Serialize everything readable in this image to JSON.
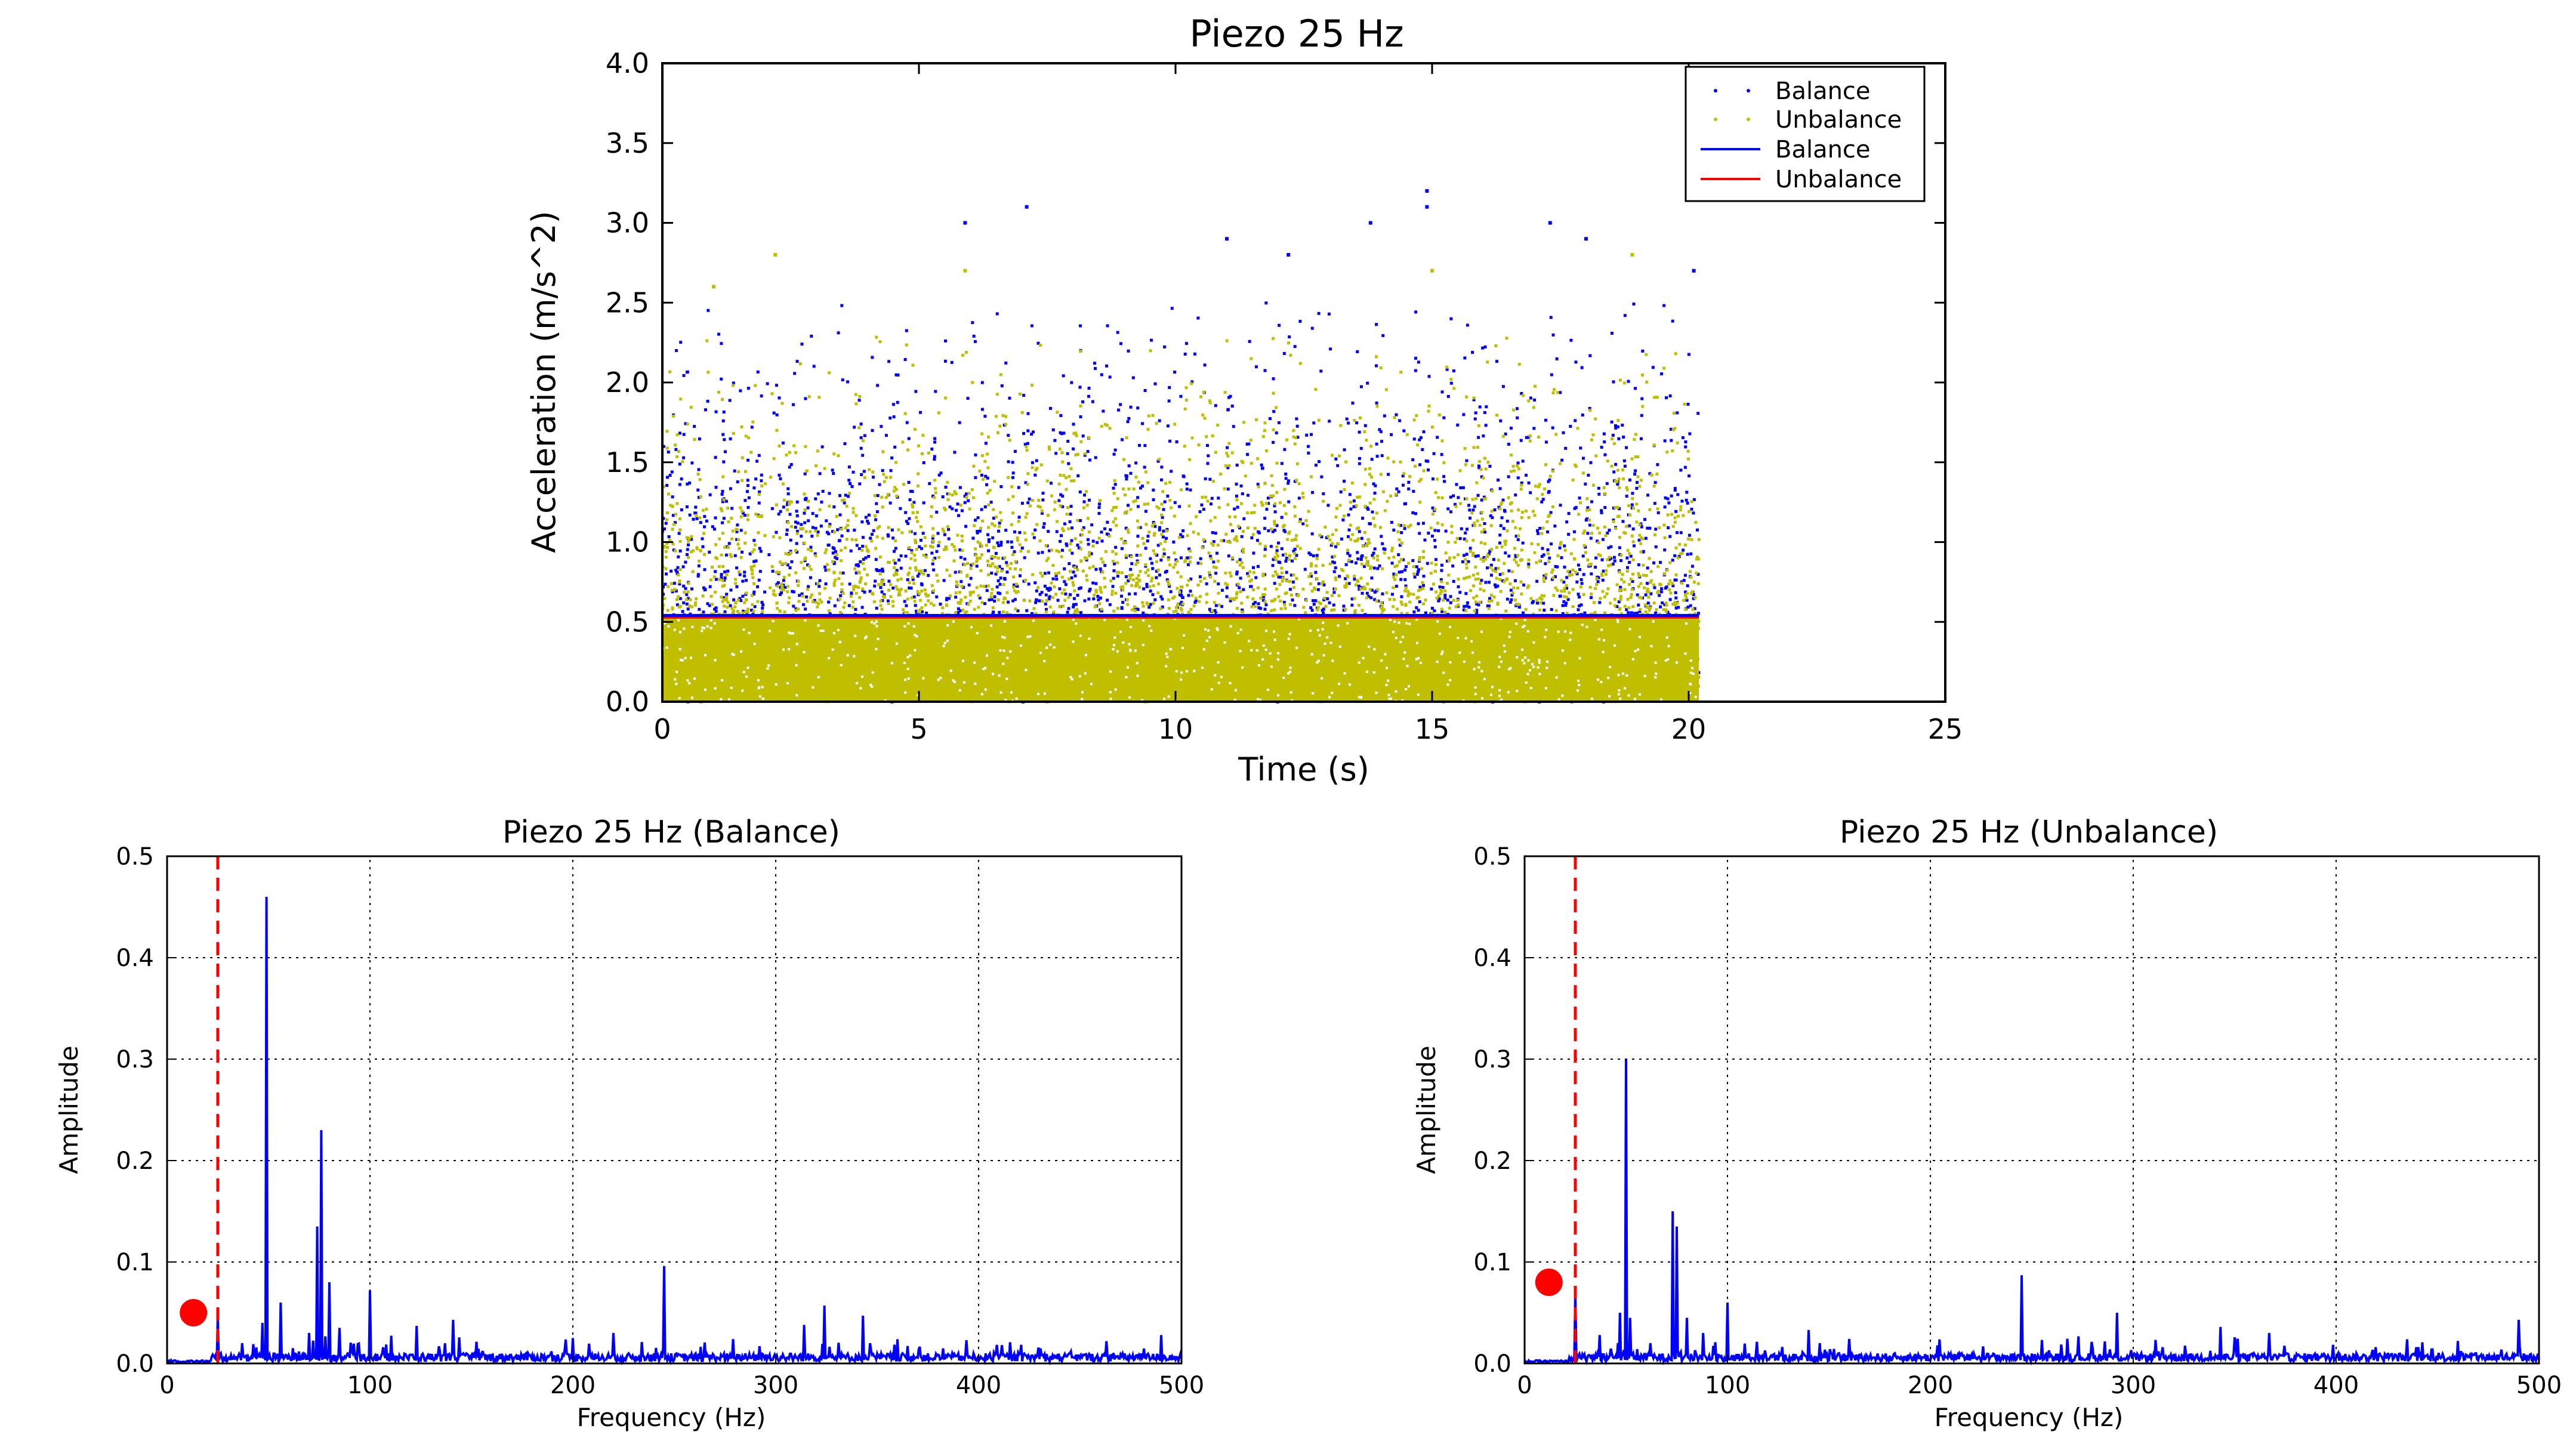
{
  "chart_data": [
    {
      "type": "scatter",
      "title": "Piezo 25 Hz",
      "xlabel": "Time (s)",
      "ylabel": "Acceleration (m/s^2)",
      "xlim": [
        0,
        25
      ],
      "ylim": [
        0,
        4.0
      ],
      "xticks": [
        "0",
        "5",
        "10",
        "15",
        "20",
        "25"
      ],
      "yticks": [
        "0.0",
        "0.5",
        "1.0",
        "1.5",
        "2.0",
        "2.5",
        "3.0",
        "3.5",
        "4.0"
      ],
      "grid": false,
      "legend_position": "top-right",
      "legend": [
        {
          "label": "Balance",
          "kind": "dots",
          "color": "#0000ff"
        },
        {
          "label": "Unbalance",
          "kind": "dots",
          "color": "#bfbf00"
        },
        {
          "label": "Balance",
          "kind": "line",
          "color": "#0000ff"
        },
        {
          "label": "Unbalance",
          "kind": "line",
          "color": "#ff0000"
        }
      ],
      "series": [
        {
          "name": "Balance",
          "kind": "scatter",
          "color": "#0000ff",
          "x_range": [
            0,
            20.2
          ],
          "typical_max": 2.5,
          "outliers": [
            [
              5.9,
              3.0
            ],
            [
              7.1,
              3.1
            ],
            [
              14.9,
              3.2
            ],
            [
              14.9,
              3.1
            ],
            [
              13.8,
              3.0
            ],
            [
              17.3,
              3.0
            ],
            [
              18.0,
              2.9
            ],
            [
              11.0,
              2.9
            ],
            [
              12.2,
              2.8
            ],
            [
              20.1,
              2.7
            ]
          ]
        },
        {
          "name": "Unbalance",
          "kind": "scatter",
          "color": "#bfbf00",
          "x_range": [
            0,
            20.2
          ],
          "typical_max": 2.3,
          "outliers": [
            [
              2.2,
              2.8
            ],
            [
              5.9,
              2.7
            ],
            [
              15.0,
              2.7
            ],
            [
              18.9,
              2.8
            ],
            [
              1.0,
              2.6
            ]
          ]
        },
        {
          "name": "Balance",
          "kind": "line",
          "color": "#0000ff",
          "x": [
            0,
            20.2
          ],
          "y": [
            0.54,
            0.54
          ]
        },
        {
          "name": "Unbalance",
          "kind": "line",
          "color": "#ff0000",
          "x": [
            0,
            20.2
          ],
          "y": [
            0.53,
            0.53
          ]
        }
      ]
    },
    {
      "type": "line",
      "title": "Piezo 25 Hz (Balance)",
      "xlabel": "Frequency (Hz)",
      "ylabel": "Amplitude",
      "xlim": [
        0,
        500
      ],
      "ylim": [
        0,
        0.5
      ],
      "xticks": [
        "0",
        "100",
        "200",
        "300",
        "400",
        "500"
      ],
      "yticks": [
        "0.0",
        "0.1",
        "0.2",
        "0.3",
        "0.4",
        "0.5"
      ],
      "grid": true,
      "reference_line": {
        "x": 25,
        "color": "#ff0000",
        "style": "dashed"
      },
      "marker": {
        "x": 13,
        "y": 0.05,
        "color": "#ff0000"
      },
      "series": [
        {
          "color": "#0000ff",
          "peaks": [
            [
              25,
              0.048
            ],
            [
              37,
              0.02
            ],
            [
              47,
              0.04
            ],
            [
              49,
              0.46
            ],
            [
              56,
              0.06
            ],
            [
              62,
              0.015
            ],
            [
              70,
              0.03
            ],
            [
              74,
              0.135
            ],
            [
              76,
              0.23
            ],
            [
              80,
              0.08
            ],
            [
              85,
              0.035
            ],
            [
              100,
              0.072
            ],
            [
              123,
              0.037
            ],
            [
              141,
              0.043
            ],
            [
              200,
              0.025
            ],
            [
              220,
              0.03
            ],
            [
              245,
              0.096
            ],
            [
              314,
              0.038
            ],
            [
              324,
              0.057
            ],
            [
              343,
              0.047
            ],
            [
              490,
              0.028
            ]
          ]
        }
      ]
    },
    {
      "type": "line",
      "title": "Piezo 25 Hz (Unbalance)",
      "xlabel": "Frequency (Hz)",
      "ylabel": "Amplitude",
      "xlim": [
        0,
        500
      ],
      "ylim": [
        0,
        0.5
      ],
      "xticks": [
        "0",
        "100",
        "200",
        "300",
        "400",
        "500"
      ],
      "yticks": [
        "0.0",
        "0.1",
        "0.2",
        "0.3",
        "0.4",
        "0.5"
      ],
      "grid": true,
      "reference_line": {
        "x": 25,
        "color": "#ff0000",
        "style": "dashed"
      },
      "marker": {
        "x": 12,
        "y": 0.08,
        "color": "#ff0000"
      },
      "series": [
        {
          "color": "#0000ff",
          "peaks": [
            [
              25,
              0.07
            ],
            [
              37,
              0.028
            ],
            [
              47,
              0.05
            ],
            [
              50,
              0.3
            ],
            [
              52,
              0.045
            ],
            [
              62,
              0.02
            ],
            [
              73,
              0.15
            ],
            [
              75,
              0.135
            ],
            [
              80,
              0.045
            ],
            [
              88,
              0.03
            ],
            [
              100,
              0.06
            ],
            [
              140,
              0.033
            ],
            [
              245,
              0.087
            ],
            [
              292,
              0.05
            ],
            [
              343,
              0.036
            ],
            [
              367,
              0.03
            ],
            [
              490,
              0.043
            ]
          ]
        }
      ]
    }
  ]
}
